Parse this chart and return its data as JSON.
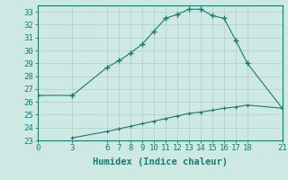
{
  "title": "",
  "xlabel": "Humidex (Indice chaleur)",
  "upper_x": [
    0,
    3,
    6,
    7,
    8,
    9,
    10,
    11,
    12,
    13,
    14,
    15,
    16,
    17,
    18,
    21
  ],
  "upper_y": [
    26.5,
    26.5,
    28.7,
    29.2,
    29.8,
    30.5,
    31.5,
    32.5,
    32.8,
    33.2,
    33.2,
    32.7,
    32.5,
    30.8,
    29.0,
    25.5
  ],
  "lower_x": [
    3,
    6,
    7,
    8,
    9,
    10,
    11,
    12,
    13,
    14,
    15,
    16,
    17,
    18,
    21
  ],
  "lower_y": [
    23.2,
    23.7,
    23.9,
    24.1,
    24.3,
    24.5,
    24.7,
    24.9,
    25.1,
    25.2,
    25.35,
    25.5,
    25.6,
    25.75,
    25.5
  ],
  "line_color": "#1a7a6e",
  "bg_color": "#cee9e4",
  "grid_color": "#b0d4cf",
  "ylim": [
    23,
    33.5
  ],
  "yticks": [
    23,
    24,
    25,
    26,
    27,
    28,
    29,
    30,
    31,
    32,
    33
  ],
  "xticks": [
    0,
    3,
    6,
    7,
    8,
    9,
    10,
    11,
    12,
    13,
    14,
    15,
    16,
    17,
    18,
    21
  ],
  "xlim": [
    0,
    21
  ],
  "xlabel_fontsize": 7.5,
  "tick_fontsize": 6.5
}
